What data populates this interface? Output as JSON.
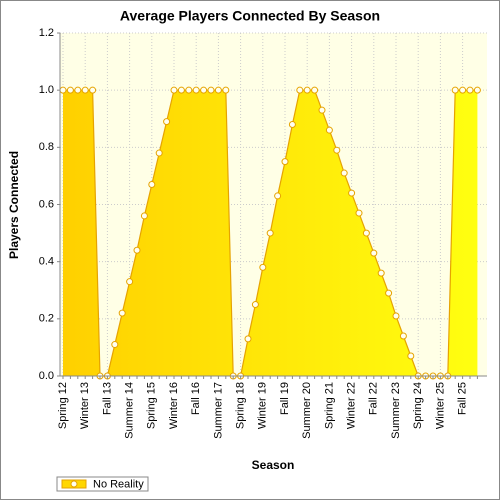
{
  "chart_data": {
    "type": "area",
    "title": "Average Players Connected By Season",
    "x_label": "Season",
    "y_label": "Players Connected",
    "categories": [
      "Spring 12",
      null,
      null,
      "Winter 13",
      null,
      null,
      "Fall 13",
      null,
      null,
      "Summer 14",
      null,
      null,
      "Spring 15",
      null,
      null,
      "Winter 16",
      null,
      null,
      "Fall 16",
      null,
      null,
      "Summer 17",
      null,
      null,
      "Spring 18",
      null,
      null,
      "Winter 19",
      null,
      null,
      "Fall 19",
      null,
      null,
      "Summer 20",
      null,
      null,
      "Spring 21",
      null,
      null,
      "Winter 22",
      null,
      null,
      "Fall 22",
      null,
      null,
      "Summer 23",
      null,
      null,
      "Spring 24",
      null,
      null,
      "Winter 25",
      null,
      null,
      "Fall 25",
      null,
      null
    ],
    "series": [
      {
        "name": "No Reality",
        "color": "#ffd700",
        "line_color": "#e6a300",
        "values": [
          1,
          1,
          1,
          1,
          1,
          0,
          0,
          0.11,
          0.22,
          0.33,
          0.44,
          0.56,
          0.67,
          0.78,
          0.89,
          1,
          1,
          1,
          1,
          1,
          1,
          1,
          1,
          0,
          0,
          0.13,
          0.25,
          0.38,
          0.5,
          0.63,
          0.75,
          0.88,
          1,
          1,
          1,
          0.93,
          0.86,
          0.79,
          0.71,
          0.64,
          0.57,
          0.5,
          0.43,
          0.36,
          0.29,
          0.21,
          0.14,
          0.07,
          0,
          0,
          0,
          0,
          0,
          1,
          1,
          1,
          1
        ]
      }
    ],
    "ylim": [
      0,
      1.2
    ],
    "yticks": [
      {
        "value": 0,
        "label": "0.0"
      },
      0.2,
      0.4,
      0.6,
      0.8,
      {
        "value": 1,
        "label": "1.0"
      },
      1.2
    ],
    "grid": true,
    "legend": "bottom-left"
  }
}
